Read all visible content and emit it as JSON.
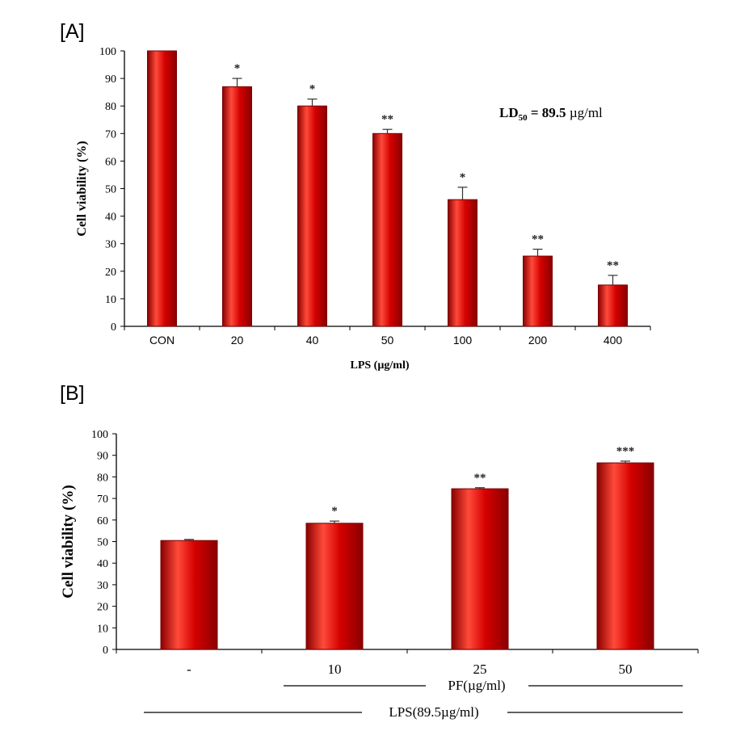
{
  "figure": {
    "panel_a_label": "[A]",
    "panel_b_label": "[B]"
  },
  "colors": {
    "bar_fill": "#cc0000",
    "bar_highlight": "#ff4a3a",
    "bar_edge": "#7a0000",
    "axis": "#000000"
  },
  "chart_data": [
    {
      "type": "bar",
      "panel": "A",
      "categories": [
        "CON",
        "20",
        "40",
        "50",
        "100",
        "200",
        "400"
      ],
      "values": [
        100,
        87,
        80,
        70,
        46,
        25.5,
        15
      ],
      "errors": [
        0,
        3,
        2.5,
        1.5,
        4.5,
        2.5,
        3.5
      ],
      "significance": [
        "",
        "*",
        "*",
        "**",
        "*",
        "**",
        "**"
      ],
      "xlabel": "LPS (µg/ml)",
      "ylabel": "Cell  viability  (%)",
      "ylim": [
        0,
        100
      ],
      "yticks": [
        0,
        10,
        20,
        30,
        40,
        50,
        60,
        70,
        80,
        90,
        100
      ],
      "annotation": {
        "prefix": "LD",
        "subscript": "50",
        "value": " = 89.5",
        "unit": " µg/ml"
      },
      "grid": false
    },
    {
      "type": "bar",
      "panel": "B",
      "categories": [
        "-",
        "10",
        "25",
        "50"
      ],
      "values": [
        50.5,
        58.5,
        74.5,
        86.5
      ],
      "errors": [
        0.5,
        1,
        0.5,
        0.8
      ],
      "significance": [
        "",
        "*",
        "**",
        "***"
      ],
      "ylabel": "Cell viability  (%)",
      "ylim": [
        0,
        100
      ],
      "yticks": [
        0,
        10,
        20,
        30,
        40,
        50,
        60,
        70,
        80,
        90,
        100
      ],
      "group_labels": {
        "pf": "PF(µg/ml)",
        "lps": "LPS(89.5µg/ml)"
      },
      "grid": false
    }
  ]
}
